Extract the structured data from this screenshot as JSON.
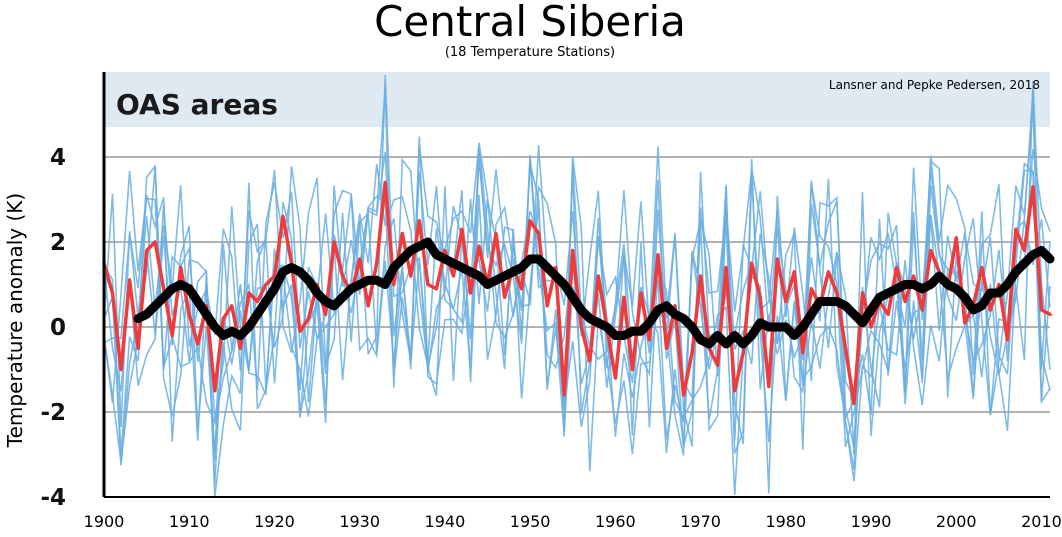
{
  "chart_data": {
    "type": "line",
    "title": "Central Siberia",
    "subtitle": "(18 Temperature Stations)",
    "credit": "Lansner and Pepke Pedersen, 2018",
    "panel_label": "OAS areas",
    "ylabel": "Temperature anomaly (K)",
    "xlabel": "",
    "xlim": [
      1900,
      2011
    ],
    "ylim": [
      -4,
      6
    ],
    "grid": true,
    "x_ticks": [
      "1900",
      "1910",
      "1920",
      "1930",
      "1940",
      "1950",
      "1960",
      "1970",
      "1980",
      "1990",
      "2000",
      "2010"
    ],
    "y_ticks": [
      "4",
      "2",
      "0",
      "-2",
      "-4"
    ],
    "colors": {
      "stations": "#6aaee0",
      "mean": "#ef3b3b",
      "smoothed": "#000000",
      "shaded_band": "#dfe9f1",
      "grid": "#999999"
    },
    "series": [
      {
        "x": [
          1900,
          1901,
          1902,
          1903,
          1904,
          1905,
          1906,
          1907,
          1908,
          1909,
          1910,
          1911,
          1912,
          1913,
          1914,
          1915,
          1916,
          1917,
          1918,
          1919,
          1920,
          1921,
          1922,
          1923,
          1924,
          1925,
          1926,
          1927,
          1928,
          1929,
          1930,
          1931,
          1932,
          1933,
          1934,
          1935,
          1936,
          1937,
          1938,
          1939,
          1940,
          1941,
          1942,
          1943,
          1944,
          1945,
          1946,
          1947,
          1948,
          1949,
          1950,
          1951,
          1952,
          1953,
          1954,
          1955,
          1956,
          1957,
          1958,
          1959,
          1960,
          1961,
          1962,
          1963,
          1964,
          1965,
          1966,
          1967,
          1968,
          1969,
          1970,
          1971,
          1972,
          1973,
          1974,
          1975,
          1976,
          1977,
          1978,
          1979,
          1980,
          1981,
          1982,
          1983,
          1984,
          1985,
          1986,
          1987,
          1988,
          1989,
          1990,
          1991,
          1992,
          1993,
          1994,
          1995,
          1996,
          1997,
          1998,
          1999,
          2000,
          2001,
          2002,
          2003,
          2004,
          2005,
          2006,
          2007,
          2008,
          2009,
          2010,
          2011
        ],
        "y": [
          1.5,
          0.8,
          -1.0,
          1.1,
          -0.5,
          1.8,
          2.0,
          0.9,
          -0.2,
          1.4,
          0.3,
          -0.4,
          0.5,
          -1.5,
          0.2,
          0.5,
          -0.5,
          0.8,
          0.6,
          1.0,
          1.2,
          2.6,
          1.5,
          -0.1,
          0.2,
          1.0,
          0.3,
          2.0,
          1.2,
          0.8,
          1.6,
          0.5,
          1.5,
          3.4,
          1.0,
          2.2,
          1.2,
          2.5,
          1.0,
          0.9,
          1.8,
          1.2,
          2.3,
          0.8,
          1.9,
          1.0,
          2.2,
          0.7,
          1.4,
          0.9,
          2.5,
          2.2,
          0.5,
          1.4,
          -1.6,
          1.8,
          0.0,
          -0.8,
          1.2,
          0.0,
          -1.2,
          0.7,
          -1.0,
          0.8,
          -0.3,
          1.7,
          -0.5,
          0.5,
          -1.6,
          -0.6,
          1.2,
          -0.5,
          -0.9,
          1.4,
          -1.5,
          -0.6,
          1.5,
          0.7,
          -1.4,
          1.6,
          0.6,
          1.3,
          -0.6,
          0.9,
          0.5,
          1.3,
          0.8,
          -0.5,
          -1.8,
          0.8,
          0.0,
          0.6,
          0.3,
          1.4,
          0.6,
          1.2,
          0.4,
          1.8,
          1.3,
          0.9,
          2.1,
          0.1,
          0.5,
          1.4,
          0.4,
          1.0,
          -0.3,
          2.3,
          1.8,
          3.3,
          0.4,
          0.3
        ]
      },
      {
        "x": [
          1904,
          1905,
          1906,
          1907,
          1908,
          1909,
          1910,
          1911,
          1912,
          1913,
          1914,
          1915,
          1916,
          1917,
          1918,
          1919,
          1920,
          1921,
          1922,
          1923,
          1924,
          1925,
          1926,
          1927,
          1928,
          1929,
          1930,
          1931,
          1932,
          1933,
          1934,
          1935,
          1936,
          1937,
          1938,
          1939,
          1940,
          1941,
          1942,
          1943,
          1944,
          1945,
          1946,
          1947,
          1948,
          1949,
          1950,
          1951,
          1952,
          1953,
          1954,
          1955,
          1956,
          1957,
          1958,
          1959,
          1960,
          1961,
          1962,
          1963,
          1964,
          1965,
          1966,
          1967,
          1968,
          1969,
          1970,
          1971,
          1972,
          1973,
          1974,
          1975,
          1976,
          1977,
          1978,
          1979,
          1980,
          1981,
          1982,
          1983,
          1984,
          1985,
          1986,
          1987,
          1988,
          1989,
          1990,
          1991,
          1992,
          1993,
          1994,
          1995,
          1996,
          1997,
          1998,
          1999,
          2000,
          2001,
          2002,
          2003,
          2004,
          2005,
          2006,
          2007,
          2008,
          2009,
          2010,
          2011
        ],
        "y": [
          0.2,
          0.3,
          0.5,
          0.7,
          0.9,
          1.0,
          0.9,
          0.6,
          0.3,
          0.0,
          -0.2,
          -0.1,
          -0.2,
          0.0,
          0.3,
          0.6,
          0.9,
          1.3,
          1.4,
          1.3,
          1.1,
          0.8,
          0.6,
          0.5,
          0.7,
          0.9,
          1.0,
          1.1,
          1.1,
          1.0,
          1.4,
          1.6,
          1.8,
          1.9,
          2.0,
          1.7,
          1.6,
          1.5,
          1.4,
          1.3,
          1.2,
          1.0,
          1.1,
          1.2,
          1.3,
          1.4,
          1.6,
          1.6,
          1.4,
          1.2,
          1.0,
          0.7,
          0.4,
          0.2,
          0.1,
          0.0,
          -0.2,
          -0.2,
          -0.1,
          -0.1,
          0.1,
          0.4,
          0.5,
          0.3,
          0.2,
          0.0,
          -0.3,
          -0.4,
          -0.2,
          -0.4,
          -0.2,
          -0.4,
          -0.2,
          0.1,
          0.0,
          0.0,
          0.0,
          -0.2,
          0.0,
          0.3,
          0.6,
          0.6,
          0.6,
          0.5,
          0.3,
          0.1,
          0.4,
          0.7,
          0.8,
          0.9,
          1.0,
          1.0,
          0.9,
          1.0,
          1.2,
          1.0,
          0.9,
          0.7,
          0.4,
          0.5,
          0.8,
          0.8,
          1.0,
          1.3,
          1.5,
          1.7,
          1.8,
          1.6
        ]
      }
    ],
    "stations_note_count": 18
  }
}
